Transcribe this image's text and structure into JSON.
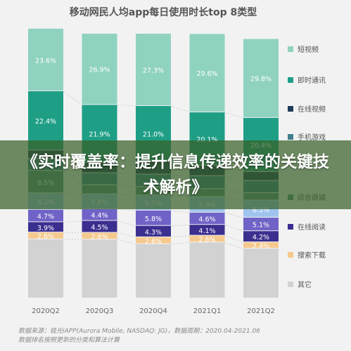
{
  "chart_data": {
    "type": "bar",
    "stacked": true,
    "normalized": true,
    "title": "移动网民人均app每日使用时长top 8类型",
    "categories": [
      "2020Q2",
      "2020Q3",
      "2020Q4",
      "2021Q1",
      "2021Q2"
    ],
    "series": [
      {
        "name": "其它",
        "color": "#d2d2d2",
        "values": [
          null,
          null,
          null,
          null,
          null
        ]
      },
      {
        "name": "搜索下载",
        "color": "#f5c98e",
        "values": [
          2.6,
          2.6,
          2.6,
          2.6,
          2.4
        ]
      },
      {
        "name": "在线阅读",
        "color": "#3a2f8f",
        "values": [
          3.9,
          4.5,
          4.3,
          4.1,
          4.2
        ]
      },
      {
        "name": "",
        "color": "#6f63c7",
        "values": [
          4.7,
          4.4,
          5.8,
          4.6,
          5.1
        ]
      },
      {
        "name": "",
        "color": "#9fc4ee",
        "values": [
          6.2,
          5.6,
          5.7,
          5.9,
          6.5
        ]
      },
      {
        "name": "综合商城",
        "color": "#5e9188",
        "values": [
          8.5,
          null,
          null,
          null,
          null
        ]
      },
      {
        "name": "手机游戏",
        "color": "#3f7f90",
        "values": [
          null,
          null,
          null,
          null,
          null
        ]
      },
      {
        "name": "在线视频",
        "color": "#1f3b5c",
        "values": [
          null,
          null,
          null,
          null,
          null
        ]
      },
      {
        "name": "即时通讯",
        "color": "#1f9e86",
        "values": [
          22.4,
          21.9,
          21.0,
          20.1,
          20.4
        ]
      },
      {
        "name": "短视频",
        "color": "#8fd2c0",
        "values": [
          23.6,
          26.9,
          27.3,
          29.6,
          29.8
        ]
      }
    ],
    "legend": [
      "短视频",
      "即时通讯",
      "在线视频",
      "手机游戏",
      "综合商城",
      "在线阅读",
      "搜索下载",
      "其它"
    ],
    "legend_position": "right",
    "ylim": [
      0,
      100
    ],
    "grid": false
  },
  "overlay": {
    "banner": "《实时覆盖率：提升信息传递效率的关键技术解析》"
  },
  "source": {
    "line1": "数据来源：极光iAPP(Aurora Mobile, NASDAQ: JG)，数据周期：2020.04-2021.06",
    "line2": "数据排名按照更新的分类和算法计算"
  }
}
